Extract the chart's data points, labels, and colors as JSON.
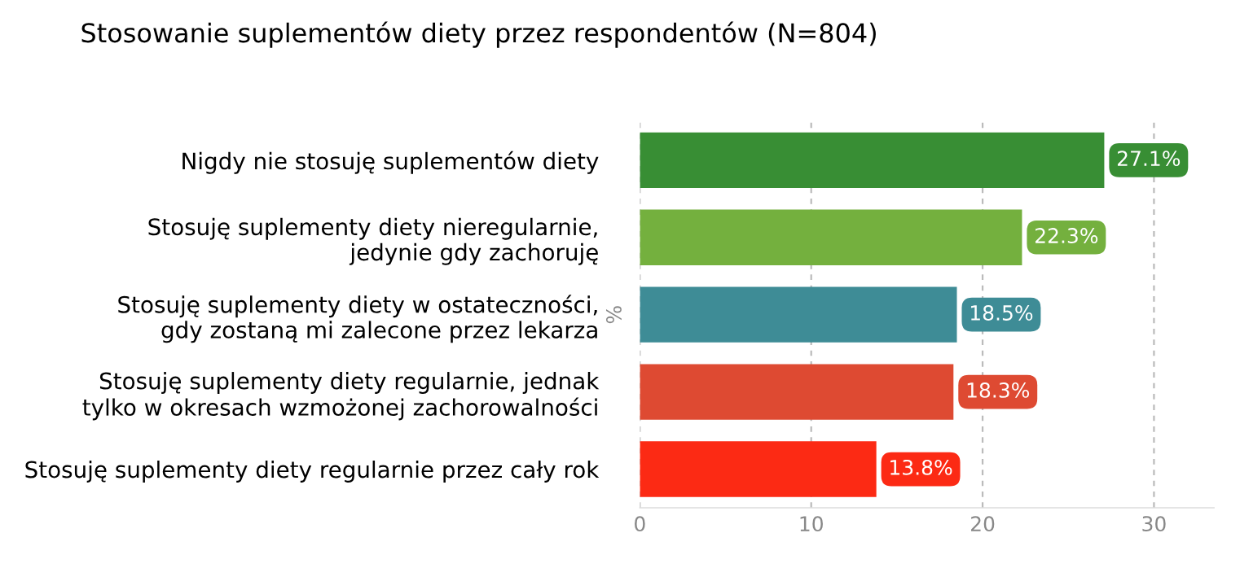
{
  "chart_data": {
    "type": "bar",
    "orientation": "horizontal",
    "title": "Stosowanie suplementów diety przez respondentów (N=804)",
    "ylabel": "%",
    "categories": [
      "Nigdy nie stosuję suplementów diety",
      "Stosuję suplementy diety nieregularnie,\njedynie gdy zachoruję",
      "Stosuję suplementy diety w ostateczności,\ngdy zostaną mi zalecone przez lekarza",
      "Stosuję suplementy diety regularnie, jednak\ntylko w okresach wzmożonej zachorowalności",
      "Stosuję suplementy diety regularnie przez cały rok"
    ],
    "values": [
      27.1,
      22.3,
      18.5,
      18.3,
      13.8
    ],
    "colors": [
      "#388e34",
      "#74b03e",
      "#3e8c96",
      "#de4a32",
      "#fc2a14"
    ],
    "value_labels": [
      "27.1%",
      "22.3%",
      "18.5%",
      "18.3%",
      "13.8%"
    ],
    "xlim": [
      0,
      33.5
    ],
    "xticks": [
      0,
      10,
      20,
      30
    ],
    "grid": "x"
  }
}
